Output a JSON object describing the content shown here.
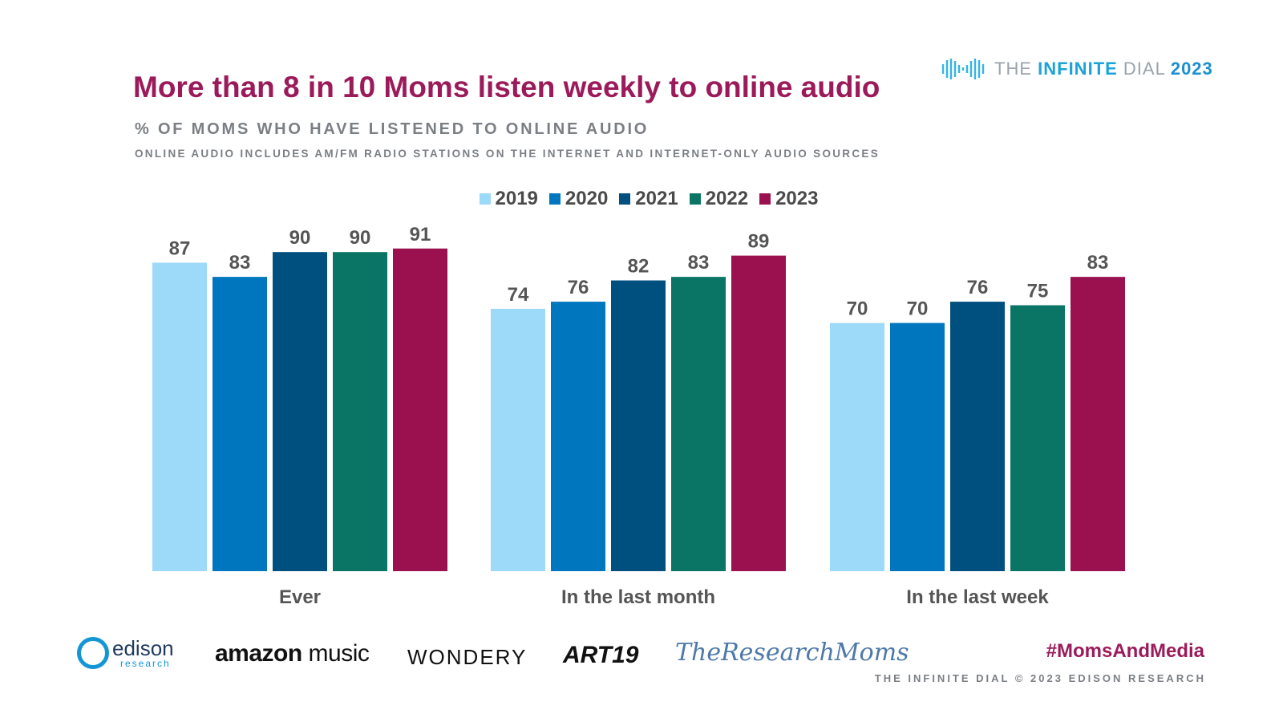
{
  "brand": {
    "prefix": "THE ",
    "strong": "INFINITE",
    "suffix": " DIAL",
    "year": "2023",
    "icon": "infinity-wave-icon"
  },
  "header": {
    "title": "More than 8 in 10 Moms listen weekly to online audio",
    "subtitle": "% OF MOMS WHO HAVE LISTENED TO ONLINE AUDIO",
    "note": "ONLINE AUDIO INCLUDES AM/FM RADIO STATIONS ON THE INTERNET AND INTERNET-ONLY AUDIO SOURCES"
  },
  "chart_data": {
    "type": "bar",
    "title": "More than 8 in 10 Moms listen weekly to online audio",
    "subtitle": "% OF MOMS WHO HAVE LISTENED TO ONLINE AUDIO",
    "xlabel": "",
    "ylabel": "",
    "ylim": [
      0,
      100
    ],
    "grid": false,
    "legend": "top-center",
    "categories": [
      "Ever",
      "In the last month",
      "In the last week"
    ],
    "series": [
      {
        "name": "2019",
        "color": "#9dd9f8",
        "values": [
          87,
          74,
          70
        ]
      },
      {
        "name": "2020",
        "color": "#0076be",
        "values": [
          83,
          76,
          70
        ]
      },
      {
        "name": "2021",
        "color": "#00507f",
        "values": [
          90,
          82,
          76
        ]
      },
      {
        "name": "2022",
        "color": "#0b7565",
        "values": [
          90,
          83,
          75
        ]
      },
      {
        "name": "2023",
        "color": "#9b1150",
        "values": [
          91,
          89,
          83
        ]
      }
    ]
  },
  "footer": {
    "logos": {
      "edison_name": "edison",
      "edison_sub": "research",
      "amazon_a": "amazon",
      "amazon_b": "music",
      "wondery": "WONDERY",
      "art19": "ART19",
      "research_moms": "TheResearchMoms"
    },
    "hashtag": "#MomsAndMedia",
    "copyright": "THE INFINITE DIAL   © 2023 EDISON RESEARCH"
  }
}
